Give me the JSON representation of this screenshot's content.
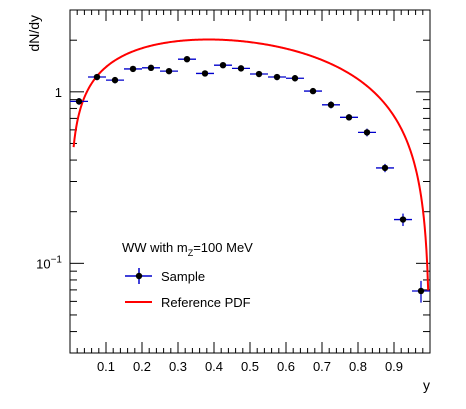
{
  "chart_data": {
    "type": "scatter",
    "xlabel": "y",
    "ylabel": "dN/dy",
    "xlim": [
      0.0,
      1.0
    ],
    "ylim": [
      0.03,
      3.0
    ],
    "yscale": "log",
    "grid": false,
    "legend_position": "lower-left",
    "x_ticks": [
      "0.1",
      "0.2",
      "0.3",
      "0.4",
      "0.5",
      "0.6",
      "0.7",
      "0.8",
      "0.9"
    ],
    "y_ticks": [
      {
        "base": "1",
        "exp": ""
      },
      {
        "base": "10",
        "exp": "−1"
      }
    ],
    "legend": {
      "title": {
        "prefix": "WW with m",
        "sub": "Z",
        "suffix": "=100 MeV"
      },
      "entries": [
        "Sample",
        "Reference PDF"
      ]
    },
    "colors": {
      "sample_marker": "#000000",
      "sample_error": "#0000cc",
      "pdf_line": "#ff0000"
    },
    "series": [
      {
        "name": "Sample",
        "style": "markers",
        "x": [
          0.025,
          0.075,
          0.125,
          0.175,
          0.225,
          0.275,
          0.325,
          0.375,
          0.425,
          0.475,
          0.525,
          0.575,
          0.625,
          0.675,
          0.725,
          0.775,
          0.825,
          0.875,
          0.925,
          0.975
        ],
        "y": [
          0.88,
          1.22,
          1.17,
          1.36,
          1.38,
          1.32,
          1.55,
          1.28,
          1.43,
          1.37,
          1.27,
          1.22,
          1.2,
          1.01,
          0.84,
          0.71,
          0.58,
          0.36,
          0.18,
          0.069
        ],
        "yerr": [
          0.04,
          0.05,
          0.05,
          0.05,
          0.05,
          0.05,
          0.06,
          0.05,
          0.05,
          0.05,
          0.05,
          0.05,
          0.05,
          0.04,
          0.04,
          0.03,
          0.03,
          0.02,
          0.015,
          0.01
        ]
      },
      {
        "name": "Reference PDF",
        "style": "line",
        "function": "y = 4.8 * x^0.5 * (1 - x)^0.8",
        "domain": [
          0.01,
          0.995
        ]
      }
    ]
  }
}
